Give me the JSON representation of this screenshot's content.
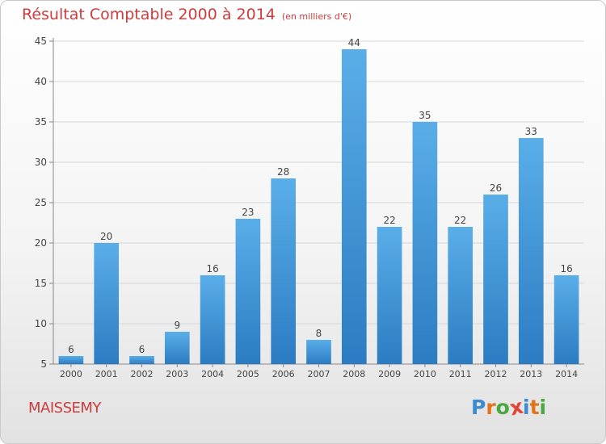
{
  "chart_data": {
    "type": "bar",
    "title": "Résultat Comptable 2000 à 2014",
    "subtitle": "(en milliers d'€)",
    "categories": [
      "2000",
      "2001",
      "2002",
      "2003",
      "2004",
      "2005",
      "2006",
      "2007",
      "2008",
      "2009",
      "2010",
      "2011",
      "2012",
      "2013",
      "2014"
    ],
    "values": [
      6,
      20,
      6,
      9,
      16,
      23,
      28,
      8,
      44,
      22,
      35,
      22,
      26,
      33,
      16
    ],
    "ylim": [
      5,
      45
    ],
    "yticks": [
      5,
      10,
      15,
      20,
      25,
      30,
      35,
      40,
      45
    ],
    "grid": true,
    "xlabel": "",
    "ylabel": "",
    "bar_color": "#3d96dc"
  },
  "footer": {
    "commune": "MAISSEMY",
    "logo_letters": [
      "P",
      "r",
      "o",
      "x",
      "i",
      "t",
      "i"
    ],
    "logo_colors": [
      "#3b8ad2",
      "#e2731f",
      "#4aa83f",
      "#e24335",
      "#3b8ad2",
      "#e2731f",
      "#4aa83f"
    ]
  },
  "colors": {
    "title": "#cc3d3d",
    "axis": "#888888"
  }
}
